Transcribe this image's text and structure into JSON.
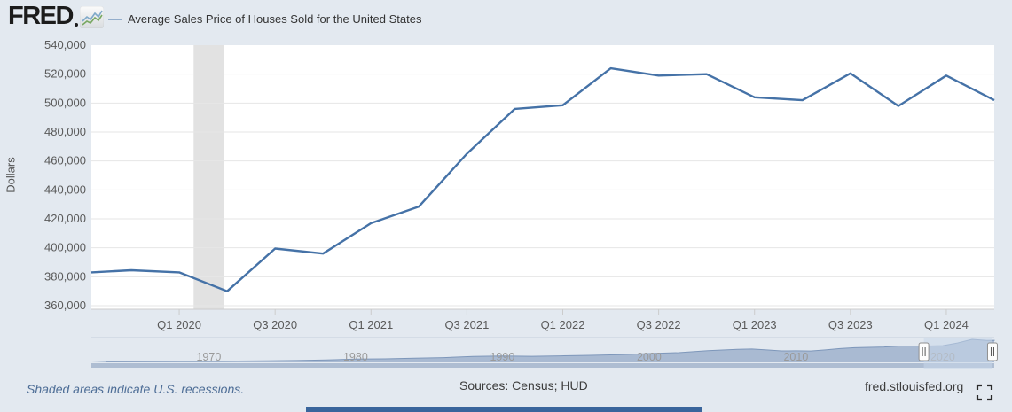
{
  "header": {
    "logo": "FRED",
    "legend_dash": "—",
    "legend_label": "Average Sales Price of Houses Sold for the United States"
  },
  "footer": {
    "note": "Shaded areas indicate U.S. recessions.",
    "sources": "Sources: Census; HUD",
    "site": "fred.stlouisfed.org"
  },
  "colors": {
    "page_bg": "#e3e9f0",
    "plot_bg": "#ffffff",
    "gridline": "#e6e6e6",
    "axis_line": "#cccccc",
    "tick_mark": "#cccccc",
    "line": "#4572a7",
    "recession_band": "#e2e2e2",
    "axis_text": "#5a5a5a",
    "minimap_fill": "#a9bad2",
    "minimap_stroke": "#7e97ba",
    "minimap_track": "#aebdd2",
    "minimap_border": "#c6d0dd",
    "selection_fill": "#c9d7e9",
    "handle_border": "#8f8f8f",
    "decade_text": "#9a9a9a"
  },
  "chart_data": {
    "type": "line",
    "title": "Average Sales Price of Houses Sold for the United States",
    "ylabel": "Dollars",
    "ylim": [
      360000,
      540000
    ],
    "yticks": [
      540000,
      520000,
      500000,
      480000,
      460000,
      440000,
      420000,
      400000,
      380000,
      360000
    ],
    "grid": true,
    "legend_position": "top-left",
    "categories": [
      "Q4 2019",
      "Q1 2020",
      "Q2 2020",
      "Q3 2020",
      "Q4 2020",
      "Q1 2021",
      "Q2 2021",
      "Q3 2021",
      "Q4 2021",
      "Q1 2022",
      "Q2 2022",
      "Q3 2022",
      "Q4 2022",
      "Q1 2023",
      "Q2 2023",
      "Q3 2023",
      "Q4 2023",
      "Q1 2024",
      "Q2 2024"
    ],
    "values": [
      384500,
      383000,
      370000,
      399500,
      396000,
      417000,
      428500,
      465000,
      496000,
      498500,
      524000,
      519000,
      520000,
      504000,
      502000,
      520500,
      498000,
      519000,
      502000
    ],
    "lead_in_value": 383000,
    "xtick_labels": [
      "Q1 2020",
      "Q3 2020",
      "Q1 2021",
      "Q3 2021",
      "Q1 2022",
      "Q3 2022",
      "Q1 2023",
      "Q3 2023",
      "Q1 2024"
    ],
    "xtick_indices": [
      1,
      3,
      5,
      7,
      9,
      11,
      13,
      15,
      17
    ],
    "recession_band": {
      "from_index": 1.3,
      "to_index": 1.94
    },
    "minimap": {
      "decade_labels": [
        "1970",
        "1980",
        "1990",
        "2000",
        "2010",
        "2020"
      ],
      "start_year": 1962,
      "years": [
        1963,
        1965,
        1968,
        1970,
        1972,
        1974,
        1976,
        1978,
        1980,
        1982,
        1984,
        1986,
        1988,
        1990,
        1992,
        1994,
        1996,
        1998,
        2000,
        2002,
        2004,
        2006,
        2007,
        2008,
        2009,
        2010,
        2011,
        2012,
        2013,
        2014,
        2015,
        2016,
        2017,
        2018,
        2019,
        2020,
        2021,
        2022,
        2023,
        2024,
        2024.6
      ],
      "values_thousands": [
        19.3,
        21.5,
        24.7,
        26.6,
        30.5,
        36,
        44.2,
        55.7,
        76.4,
        83.9,
        97.6,
        111.9,
        138.3,
        149,
        144.1,
        154.5,
        166.4,
        181.9,
        207,
        228.7,
        274.5,
        305.9,
        313.6,
        292.6,
        270.9,
        272.9,
        267.9,
        292.2,
        324.5,
        345.8,
        352.3,
        360.9,
        384.9,
        385,
        383.9,
        391.9,
        454.3,
        540,
        513.4,
        517,
        502
      ],
      "selection_fractions": [
        0.922,
        0.998
      ]
    }
  }
}
